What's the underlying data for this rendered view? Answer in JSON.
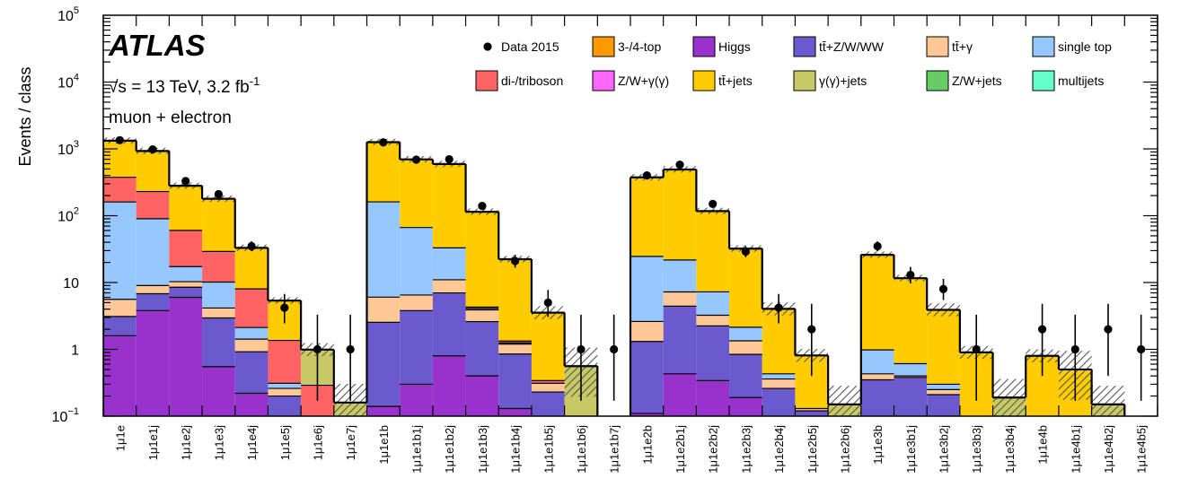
{
  "chart_data": {
    "type": "bar",
    "stacked": true,
    "log_scale": true,
    "ylabel": "Events / class",
    "xlabel": "",
    "ylim": [
      0.1,
      100000
    ],
    "y_ticks": [
      {
        "value": 0.1,
        "base": "10",
        "exp": "−1"
      },
      {
        "value": 1,
        "base": "1",
        "exp": ""
      },
      {
        "value": 10,
        "base": "10",
        "exp": ""
      },
      {
        "value": 100,
        "base": "10",
        "exp": "2"
      },
      {
        "value": 1000,
        "base": "10",
        "exp": "3"
      },
      {
        "value": 10000,
        "base": "10",
        "exp": "4"
      },
      {
        "value": 100000,
        "base": "10",
        "exp": "5"
      }
    ],
    "experiment": "ATLAS",
    "energy_prefix": "√s = 13 TeV, 3.2 fb",
    "energy_exp": "-1",
    "channel": "muon + electron",
    "legend_placement": "top-right",
    "uncertainty_hatched": true,
    "categories": [
      "1μ1e",
      "1μ1e1j",
      "1μ1e2j",
      "1μ1e3j",
      "1μ1e4j",
      "1μ1e5j",
      "1μ1e6j",
      "1μ1e7j",
      "1μ1e1b",
      "1μ1e1b1j",
      "1μ1e1b2j",
      "1μ1e1b3j",
      "1μ1e1b4j",
      "1μ1e1b5j",
      "1μ1e1b6j",
      "1μ1e1b7j",
      "1μ1e2b",
      "1μ1e2b1j",
      "1μ1e2b2j",
      "1μ1e2b3j",
      "1μ1e2b4j",
      "1μ1e2b5j",
      "1μ1e2b6j",
      "1μ1e3b",
      "1μ1e3b1j",
      "1μ1e3b2j",
      "1μ1e3b3j",
      "1μ1e3b4j",
      "1μ1e4b",
      "1μ1e4b1j",
      "1μ1e4b2j",
      "1μ1e4b5j"
    ],
    "data_label": "Data 2015",
    "data": [
      1350,
      980,
      330,
      210,
      35,
      4.2,
      1,
      1,
      1250,
      690,
      700,
      140,
      21,
      5,
      1,
      1,
      400,
      580,
      150,
      29,
      4.2,
      2,
      null,
      35,
      13,
      8,
      1,
      null,
      2,
      1,
      2,
      1
    ],
    "series": [
      {
        "name": "Higgs",
        "color": "#9932CC",
        "values": [
          1.6,
          3.8,
          6,
          0.55,
          0.22,
          0,
          0,
          0,
          0.14,
          0.3,
          0.8,
          0.4,
          0.13,
          0,
          0,
          0,
          0.11,
          0.43,
          0.34,
          0.19,
          0,
          0,
          0,
          0,
          0,
          0,
          0,
          0,
          0,
          0,
          0,
          0
        ]
      },
      {
        "name": "tt̄+Z/W/WW",
        "color": "#6A5ACD",
        "values": [
          1.5,
          3,
          2.5,
          2.4,
          0.7,
          0.2,
          0,
          0,
          2.4,
          3.5,
          6.2,
          2.2,
          0.72,
          0.23,
          0,
          0,
          1.2,
          4,
          1.9,
          0.65,
          0.26,
          0.12,
          0,
          0.35,
          0.38,
          0.21,
          0,
          0,
          0,
          0,
          0,
          0
        ]
      },
      {
        "name": "tt̄+γ",
        "color": "#FFC896",
        "values": [
          2.5,
          2.2,
          1.8,
          1.2,
          0.5,
          0.06,
          0,
          0,
          3.5,
          2.7,
          4,
          1.3,
          0.35,
          0.08,
          0,
          0,
          1.3,
          2.8,
          1,
          0.5,
          0.1,
          0.01,
          0,
          0.08,
          0.02,
          0.04,
          0,
          0,
          0,
          0,
          0,
          0
        ]
      },
      {
        "name": "single top",
        "color": "#96C8FF",
        "values": [
          155,
          81,
          7,
          6,
          0.7,
          0.05,
          0,
          0,
          155,
          60,
          22,
          0.2,
          0.05,
          0,
          0,
          0,
          22,
          14.5,
          4,
          0.8,
          0.07,
          0,
          0,
          0.55,
          0.21,
          0.05,
          0,
          0,
          0,
          0,
          0,
          0
        ]
      },
      {
        "name": "di-/triboson",
        "color": "#FF6464",
        "values": [
          215,
          140,
          43,
          19,
          5.9,
          1.05,
          0.29,
          0,
          0,
          0,
          0,
          0.2,
          0.08,
          0.03,
          0,
          0,
          0,
          0,
          0,
          0,
          0,
          0,
          0,
          0,
          0,
          0,
          0,
          0,
          0,
          0,
          0,
          0
        ]
      },
      {
        "name": "tt̄+jets",
        "color": "#FFCC00",
        "values": [
          950,
          700,
          220,
          150,
          25,
          4,
          0,
          0,
          1100,
          630,
          560,
          110,
          21,
          3.2,
          0,
          0,
          350,
          470,
          110,
          30,
          3.6,
          0.68,
          0,
          25,
          11,
          3.6,
          0.9,
          0,
          0.8,
          0.5,
          0,
          0
        ]
      },
      {
        "name": "γ(γ)+jets",
        "color": "#C8C864",
        "values": [
          0,
          0,
          0,
          0,
          0,
          0,
          0.7,
          0.16,
          0,
          0,
          0,
          0,
          0,
          0,
          0.56,
          0,
          0,
          0,
          0,
          0,
          0,
          0,
          0.15,
          0,
          0,
          0,
          0,
          0.19,
          0,
          0,
          0.15,
          0
        ]
      }
    ],
    "legend": [
      {
        "name": "Data 2015",
        "color": "#000000",
        "marker": true
      },
      {
        "name": "3-/4-top",
        "color": "#FF9900"
      },
      {
        "name": "Higgs",
        "color": "#9932CC"
      },
      {
        "name": "tt̄+Z/W/WW",
        "color": "#6A5ACD"
      },
      {
        "name": "tt̄+γ",
        "color": "#FFC896"
      },
      {
        "name": "single top",
        "color": "#96C8FF"
      },
      {
        "name": "di-/triboson",
        "color": "#FF6464"
      },
      {
        "name": "Z/W+γ(γ)",
        "color": "#FF66FF"
      },
      {
        "name": "tt̄+jets",
        "color": "#FFCC00"
      },
      {
        "name": "γ(γ)+jets",
        "color": "#C8C864"
      },
      {
        "name": "Z/W+jets",
        "color": "#66CC66"
      },
      {
        "name": "multijets",
        "color": "#66FFCC"
      }
    ]
  }
}
